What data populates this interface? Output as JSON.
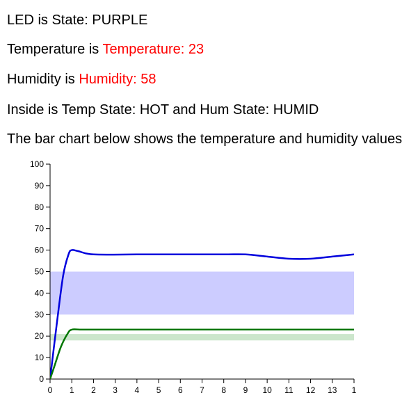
{
  "led_line": {
    "prefix": "LED is ",
    "value": "State: PURPLE"
  },
  "temperature_line": {
    "prefix": "Temperature is ",
    "value": "Temperature: 23",
    "value_color": "#ff0000"
  },
  "humidity_line": {
    "prefix": "Humidity is ",
    "value": "Humidity: 58",
    "value_color": "#ff0000"
  },
  "inside_line": {
    "prefix": "Inside is ",
    "value": "Temp State: HOT and Hum State: HUMID"
  },
  "description": "The bar chart below shows the temperature and humidity values",
  "chart_data": {
    "type": "line",
    "xlim": [
      0,
      14
    ],
    "ylim": [
      0,
      100
    ],
    "x_ticks": [
      "0",
      "1",
      "2",
      "3",
      "4",
      "5",
      "6",
      "7",
      "8",
      "9",
      "10",
      "11",
      "12",
      "13",
      "1"
    ],
    "y_ticks": [
      "0",
      "10",
      "20",
      "30",
      "40",
      "50",
      "60",
      "70",
      "80",
      "90",
      "100"
    ],
    "grid": false,
    "bands": [
      {
        "y_range": [
          30,
          50
        ],
        "color": "#ccccff"
      },
      {
        "y_range": [
          18,
          21
        ],
        "color": "#cce6cc"
      }
    ],
    "series": [
      {
        "color": "#0000dd",
        "points": [
          [
            0,
            0
          ],
          [
            0.3,
            25
          ],
          [
            0.6,
            48
          ],
          [
            0.85,
            58
          ],
          [
            1,
            60
          ],
          [
            1.3,
            59.5
          ],
          [
            2,
            58
          ],
          [
            4,
            58
          ],
          [
            6,
            58
          ],
          [
            8,
            58
          ],
          [
            9,
            58
          ],
          [
            10,
            57
          ],
          [
            11,
            56
          ],
          [
            12,
            56
          ],
          [
            13,
            57
          ],
          [
            14,
            58
          ]
        ]
      },
      {
        "color": "#007700",
        "points": [
          [
            0,
            0
          ],
          [
            0.2,
            6
          ],
          [
            0.5,
            15
          ],
          [
            0.8,
            21
          ],
          [
            1,
            23
          ],
          [
            1.5,
            23
          ],
          [
            3,
            23
          ],
          [
            6,
            23
          ],
          [
            9,
            23
          ],
          [
            12,
            23
          ],
          [
            14,
            23
          ]
        ]
      }
    ]
  }
}
